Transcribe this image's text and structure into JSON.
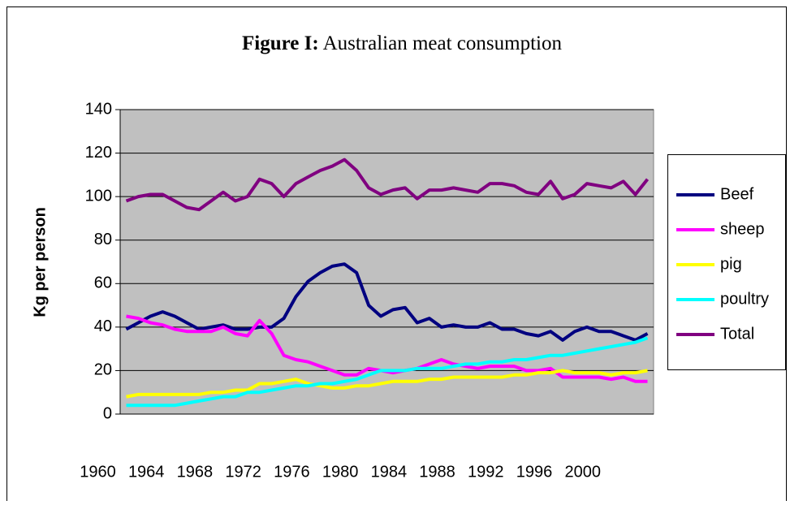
{
  "chart_data": {
    "type": "line",
    "title_bold": "Figure I:",
    "title": "Australian meat consumption",
    "y_label": "Kg per person",
    "categories": [
      "1960",
      null,
      null,
      null,
      "1964",
      null,
      null,
      null,
      "1968",
      null,
      null,
      null,
      "1972",
      null,
      null,
      null,
      "1976",
      null,
      null,
      null,
      "1980",
      null,
      null,
      null,
      "1984",
      null,
      null,
      null,
      "1988",
      null,
      null,
      null,
      "1992",
      null,
      null,
      null,
      "1996",
      null,
      null,
      null,
      "2000",
      null,
      null,
      null
    ],
    "series": [
      {
        "name": "Beef",
        "color": "#000080",
        "values": [
          39,
          42,
          45,
          47,
          45,
          42,
          39,
          40,
          41,
          39,
          39,
          40,
          40,
          44,
          54,
          61,
          65,
          68,
          69,
          65,
          50,
          45,
          48,
          49,
          42,
          44,
          40,
          41,
          40,
          40,
          42,
          39,
          39,
          37,
          36,
          38,
          34,
          38,
          40,
          38,
          38,
          36,
          34,
          37
        ]
      },
      {
        "name": "sheep",
        "color": "#ff00ff",
        "values": [
          45,
          44,
          42,
          41,
          39,
          38,
          38,
          38,
          40,
          37,
          36,
          43,
          37,
          27,
          25,
          24,
          22,
          20,
          18,
          18,
          21,
          20,
          19,
          20,
          21,
          23,
          25,
          23,
          22,
          21,
          22,
          22,
          22,
          20,
          20,
          21,
          17,
          17,
          17,
          17,
          16,
          17,
          15,
          15
        ]
      },
      {
        "name": "pig",
        "color": "#ffff00",
        "values": [
          8,
          9,
          9,
          9,
          9,
          9,
          9,
          10,
          10,
          11,
          11,
          14,
          14,
          15,
          16,
          14,
          13,
          12,
          12,
          13,
          13,
          14,
          15,
          15,
          15,
          16,
          16,
          17,
          17,
          17,
          17,
          17,
          18,
          18,
          19,
          19,
          20,
          19,
          19,
          19,
          18,
          19,
          19,
          20
        ]
      },
      {
        "name": "poultry",
        "color": "#00ffff",
        "values": [
          4,
          4,
          4,
          4,
          4,
          5,
          6,
          7,
          8,
          8,
          10,
          10,
          11,
          12,
          13,
          13,
          14,
          14,
          15,
          16,
          18,
          20,
          20,
          20,
          21,
          21,
          21,
          22,
          23,
          23,
          24,
          24,
          25,
          25,
          26,
          27,
          27,
          28,
          29,
          30,
          31,
          32,
          33,
          35
        ]
      },
      {
        "name": "Total",
        "color": "#800080",
        "values": [
          98,
          100,
          101,
          101,
          98,
          95,
          94,
          98,
          102,
          98,
          100,
          108,
          106,
          100,
          106,
          109,
          112,
          114,
          117,
          112,
          104,
          101,
          103,
          104,
          99,
          103,
          103,
          104,
          103,
          102,
          106,
          106,
          105,
          102,
          101,
          107,
          99,
          101,
          106,
          105,
          104,
          107,
          101,
          108
        ]
      }
    ],
    "ylim": [
      0,
      140
    ],
    "yticks": [
      0,
      20,
      40,
      60,
      80,
      100,
      120,
      140
    ],
    "grid": true,
    "plot_background": "#c0c0c0",
    "legend": "right"
  }
}
